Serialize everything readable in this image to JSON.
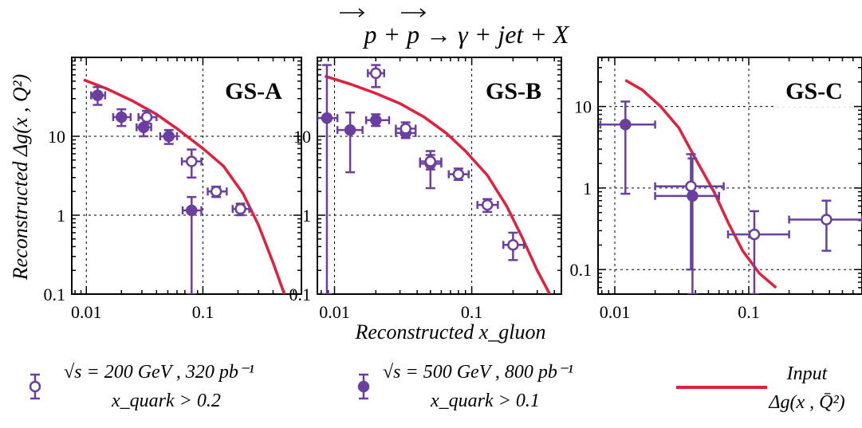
{
  "figure": {
    "title": "p + p → γ + jet + X",
    "ylabel": "Reconstructed Δg(x , Q²)",
    "xlabel": "Reconstructed x_gluon"
  },
  "legend": [
    {
      "key": "open",
      "line1": "√s = 200 GeV , 320 pb⁻¹",
      "line2": "x_quark > 0.2"
    },
    {
      "key": "filled",
      "line1": "√s = 500 GeV , 800 pb⁻¹",
      "line2": "x_quark > 0.1"
    },
    {
      "key": "input",
      "line1": "Input",
      "line2": "Δg(x , Q̄²)"
    }
  ],
  "colors": {
    "points": "#6b3fa0",
    "input_curve": "#e0203c",
    "grid": "#000000"
  },
  "chart_data": [
    {
      "type": "scatter",
      "panel_label": "GS-A",
      "xscale": "log",
      "yscale": "log",
      "xlim": [
        0.0075,
        0.7
      ],
      "ylim": [
        0.1,
        100
      ],
      "xticks": [
        0.01,
        0.1
      ],
      "xticklabels": [
        "0.01",
        "0.1"
      ],
      "yticks": [
        0.1,
        1,
        10
      ],
      "yticklabels": [
        "0.1",
        "1",
        "10"
      ],
      "grid": true,
      "series": [
        {
          "key": "input",
          "kind": "line",
          "x": [
            0.0095,
            0.015,
            0.025,
            0.04,
            0.06,
            0.1,
            0.15,
            0.22,
            0.3,
            0.4,
            0.5
          ],
          "y": [
            52,
            40,
            28,
            19,
            12.5,
            7,
            4.2,
            1.9,
            0.75,
            0.25,
            0.1
          ]
        },
        {
          "key": "filled",
          "kind": "points",
          "x": [
            0.0125,
            0.02,
            0.031,
            0.051,
            0.08
          ],
          "y": [
            33,
            17.5,
            13,
            10,
            1.15
          ],
          "ylo": [
            25,
            13.5,
            10,
            8,
            0.1
          ],
          "yhi": [
            42,
            22,
            17,
            12,
            1.7
          ],
          "xlo": [
            0.011,
            0.017,
            0.027,
            0.043,
            0.067
          ],
          "xhi": [
            0.0145,
            0.024,
            0.036,
            0.06,
            0.097
          ]
        },
        {
          "key": "open",
          "kind": "points",
          "x": [
            0.033,
            0.08,
            0.13,
            0.21
          ],
          "y": [
            17.5,
            4.8,
            2.0,
            1.2
          ],
          "ylo": [
            14.5,
            3.0,
            1.7,
            1.0
          ],
          "yhi": [
            21,
            6.8,
            2.3,
            1.4
          ],
          "xlo": [
            0.028,
            0.066,
            0.11,
            0.18
          ],
          "xhi": [
            0.04,
            0.097,
            0.16,
            0.25
          ]
        }
      ]
    },
    {
      "type": "scatter",
      "panel_label": "GS-B",
      "xscale": "log",
      "yscale": "log",
      "xlim": [
        0.0075,
        0.45
      ],
      "ylim": [
        0.1,
        100
      ],
      "xticks": [
        0.01,
        0.1
      ],
      "xticklabels": [
        "0.01",
        "0.1"
      ],
      "yticks": [
        0.1,
        1,
        10
      ],
      "yticklabels": [
        "0.1",
        "1",
        "10"
      ],
      "grid": true,
      "series": [
        {
          "key": "input",
          "kind": "line",
          "x": [
            0.0085,
            0.013,
            0.02,
            0.03,
            0.045,
            0.065,
            0.09,
            0.13,
            0.18,
            0.23,
            0.3,
            0.37
          ],
          "y": [
            58,
            46,
            35,
            26,
            17.5,
            11,
            6.5,
            3.2,
            1.3,
            0.55,
            0.2,
            0.1
          ]
        },
        {
          "key": "filled",
          "kind": "points",
          "x": [
            0.0088,
            0.013,
            0.02,
            0.033,
            0.05
          ],
          "y": [
            17,
            12,
            16,
            11,
            4.5
          ],
          "ylo": [
            0.1,
            3.5,
            13.5,
            9.5,
            2.2
          ],
          "yhi": [
            80,
            20,
            19,
            13,
            6.5
          ],
          "xlo": [
            0.0075,
            0.0105,
            0.017,
            0.028,
            0.042
          ],
          "xhi": [
            0.0105,
            0.016,
            0.025,
            0.039,
            0.06
          ]
        },
        {
          "key": "open",
          "kind": "points",
          "x": [
            0.02,
            0.033,
            0.05,
            0.08,
            0.13,
            0.2
          ],
          "y": [
            63,
            12.5,
            4.8,
            3.3,
            1.35,
            0.42
          ],
          "ylo": [
            42,
            10.5,
            3.8,
            2.8,
            1.1,
            0.27
          ],
          "yhi": [
            80,
            15,
            5.8,
            3.9,
            1.6,
            0.6
          ],
          "xlo": [
            0.0175,
            0.028,
            0.042,
            0.068,
            0.11,
            0.17
          ],
          "xhi": [
            0.023,
            0.039,
            0.06,
            0.095,
            0.155,
            0.24
          ]
        }
      ]
    },
    {
      "type": "scatter",
      "panel_label": "GS-C",
      "xscale": "log",
      "yscale": "log",
      "xlim": [
        0.0075,
        0.7
      ],
      "ylim": [
        0.05,
        40
      ],
      "xticks": [
        0.01,
        0.1
      ],
      "xticklabels": [
        "0.01",
        "0.1"
      ],
      "yticks": [
        0.1,
        1,
        10
      ],
      "yticklabels": [
        "0.1",
        "1",
        "10"
      ],
      "grid": true,
      "series": [
        {
          "key": "input",
          "kind": "line",
          "x": [
            0.012,
            0.016,
            0.022,
            0.03,
            0.04,
            0.055,
            0.07,
            0.09,
            0.12,
            0.16
          ],
          "y": [
            21,
            16,
            10,
            5.5,
            2.3,
            0.9,
            0.38,
            0.17,
            0.09,
            0.06
          ]
        },
        {
          "key": "filled",
          "kind": "points",
          "x": [
            0.012,
            0.038
          ],
          "y": [
            6,
            0.8
          ],
          "ylo": [
            0.85,
            0.05
          ],
          "yhi": [
            11.5,
            2.3
          ],
          "xlo": [
            0.0078,
            0.02
          ],
          "xhi": [
            0.02,
            0.06
          ]
        },
        {
          "key": "open",
          "kind": "points",
          "x": [
            0.037,
            0.11,
            0.38
          ],
          "y": [
            1.05,
            0.27,
            0.41
          ],
          "ylo": [
            0.1,
            0.05,
            0.17
          ],
          "yhi": [
            2.6,
            0.52,
            0.7
          ],
          "xlo": [
            0.02,
            0.07,
            0.2
          ],
          "xhi": [
            0.065,
            0.2,
            0.7
          ]
        }
      ]
    }
  ]
}
